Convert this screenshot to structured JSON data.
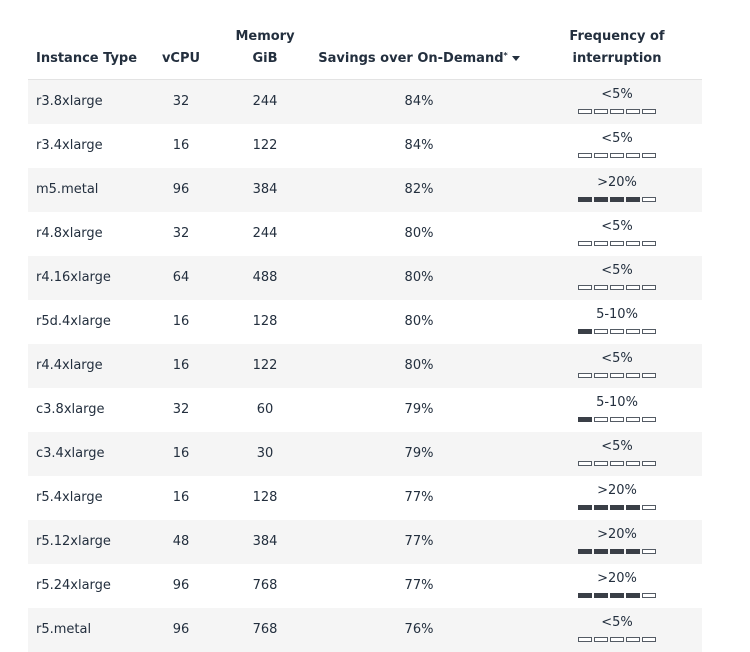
{
  "headers": {
    "instance_type": "Instance Type",
    "vcpu": "vCPU",
    "memory_line1": "Memory",
    "memory_line2": "GiB",
    "savings": "Savings over On-Demand",
    "savings_asterisk": "*",
    "frequency_line1": "Frequency of",
    "frequency_line2": "interruption"
  },
  "sort_icon": "sort-descending-icon",
  "rows": [
    {
      "type": "r3.8xlarge",
      "vcpu": "32",
      "memory": "244",
      "savings": "84%",
      "frequency": "<5%",
      "level": 0
    },
    {
      "type": "r3.4xlarge",
      "vcpu": "16",
      "memory": "122",
      "savings": "84%",
      "frequency": "<5%",
      "level": 0
    },
    {
      "type": "m5.metal",
      "vcpu": "96",
      "memory": "384",
      "savings": "82%",
      "frequency": ">20%",
      "level": 4
    },
    {
      "type": "r4.8xlarge",
      "vcpu": "32",
      "memory": "244",
      "savings": "80%",
      "frequency": "<5%",
      "level": 0
    },
    {
      "type": "r4.16xlarge",
      "vcpu": "64",
      "memory": "488",
      "savings": "80%",
      "frequency": "<5%",
      "level": 0
    },
    {
      "type": "r5d.4xlarge",
      "vcpu": "16",
      "memory": "128",
      "savings": "80%",
      "frequency": "5-10%",
      "level": 1
    },
    {
      "type": "r4.4xlarge",
      "vcpu": "16",
      "memory": "122",
      "savings": "80%",
      "frequency": "<5%",
      "level": 0
    },
    {
      "type": "c3.8xlarge",
      "vcpu": "32",
      "memory": "60",
      "savings": "79%",
      "frequency": "5-10%",
      "level": 1
    },
    {
      "type": "c3.4xlarge",
      "vcpu": "16",
      "memory": "30",
      "savings": "79%",
      "frequency": "<5%",
      "level": 0
    },
    {
      "type": "r5.4xlarge",
      "vcpu": "16",
      "memory": "128",
      "savings": "77%",
      "frequency": ">20%",
      "level": 4
    },
    {
      "type": "r5.12xlarge",
      "vcpu": "48",
      "memory": "384",
      "savings": "77%",
      "frequency": ">20%",
      "level": 4
    },
    {
      "type": "r5.24xlarge",
      "vcpu": "96",
      "memory": "768",
      "savings": "77%",
      "frequency": ">20%",
      "level": 4
    },
    {
      "type": "r5.metal",
      "vcpu": "96",
      "memory": "768",
      "savings": "76%",
      "frequency": "<5%",
      "level": 0
    }
  ],
  "colors": {
    "text": "#232f3e",
    "row_stripe": "#f5f5f5",
    "bar_filled": "#3a3f47",
    "bar_border": "#545b64"
  }
}
